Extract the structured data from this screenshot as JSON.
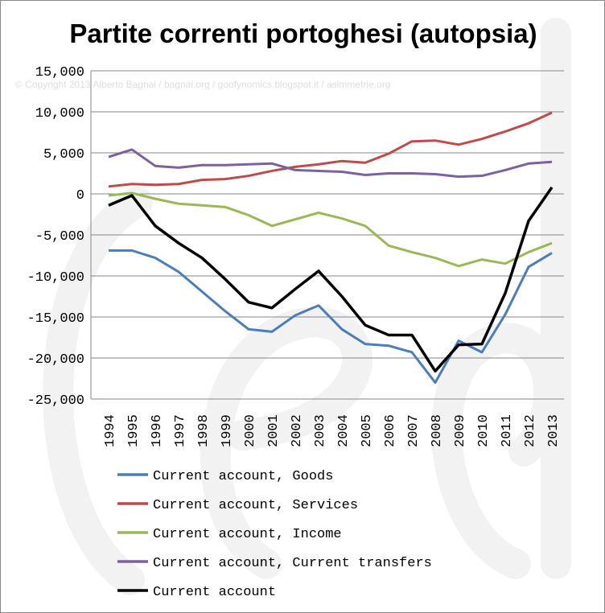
{
  "chart_data": {
    "type": "line",
    "title": "Partite correnti portoghesi (autopsia)",
    "watermark": "© Copyright 2013 Alberto Bagnai / bagnai.org / goofynomics.blogspot.it / asimmetrie.org",
    "xlabel": "",
    "ylabel": "",
    "ylim": [
      -25000,
      15000
    ],
    "yticks": [
      15000,
      10000,
      5000,
      0,
      -5000,
      -10000,
      -15000,
      -20000,
      -25000
    ],
    "ytick_labels": [
      "15,000",
      "10,000",
      "5,000",
      "0",
      "-5,000",
      "-10,000",
      "-15,000",
      "-20,000",
      "-25,000"
    ],
    "grid": true,
    "legend_placement": "bottom",
    "x": [
      "1994",
      "1995",
      "1996",
      "1997",
      "1998",
      "1999",
      "2000",
      "2001",
      "2002",
      "2003",
      "2004",
      "2005",
      "2006",
      "2007",
      "2008",
      "2009",
      "2010",
      "2011",
      "2012",
      "2013"
    ],
    "series": [
      {
        "name": "Current account, Goods",
        "color": "#4a7ebb",
        "values": [
          -6900,
          -6900,
          -7800,
          -9500,
          -11900,
          -14300,
          -16500,
          -16800,
          -14800,
          -13600,
          -16500,
          -18300,
          -18500,
          -19300,
          -23000,
          -17900,
          -19300,
          -14700,
          -8900,
          -7200
        ]
      },
      {
        "name": "Current account, Services",
        "color": "#be4b48",
        "values": [
          900,
          1200,
          1100,
          1200,
          1700,
          1800,
          2200,
          2800,
          3300,
          3600,
          4000,
          3800,
          4900,
          6400,
          6500,
          6000,
          6700,
          7600,
          8600,
          9900
        ]
      },
      {
        "name": "Current account, Income",
        "color": "#98b954",
        "values": [
          -200,
          100,
          -600,
          -1200,
          -1400,
          -1600,
          -2600,
          -3900,
          -3100,
          -2300,
          -3000,
          -3900,
          -6300,
          -7100,
          -7800,
          -8800,
          -8000,
          -8500,
          -7100,
          -6000
        ]
      },
      {
        "name": "Current account, Current transfers",
        "color": "#7d60a0",
        "values": [
          4500,
          5400,
          3400,
          3200,
          3500,
          3500,
          3600,
          3700,
          2900,
          2800,
          2700,
          2300,
          2500,
          2500,
          2400,
          2100,
          2200,
          2900,
          3700,
          3900
        ]
      },
      {
        "name": "Current account",
        "color": "#000000",
        "values": [
          -1400,
          -200,
          -3900,
          -6000,
          -7800,
          -10400,
          -13200,
          -13900,
          -11600,
          -9400,
          -12500,
          -16000,
          -17200,
          -17200,
          -21600,
          -18400,
          -18300,
          -12100,
          -3300,
          800
        ]
      }
    ]
  }
}
